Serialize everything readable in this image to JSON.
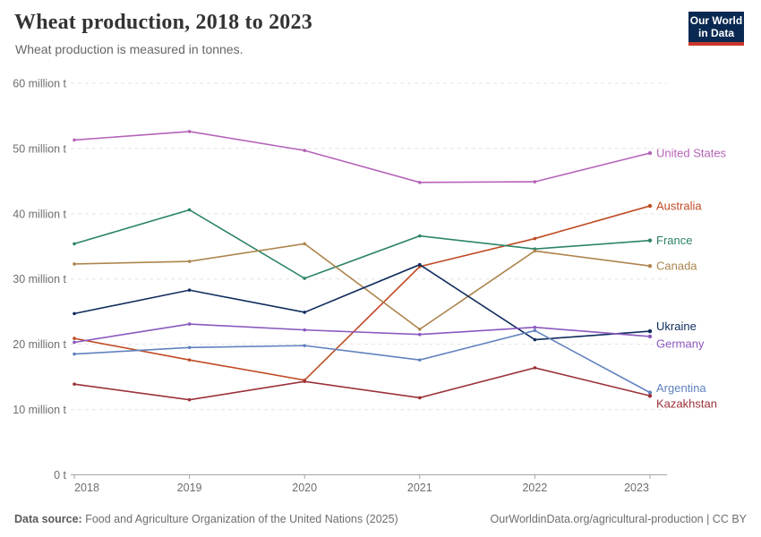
{
  "header": {
    "title": "Wheat production, 2018 to 2023",
    "subtitle": "Wheat production is measured in tonnes."
  },
  "logo": {
    "line1": "Our World",
    "line2": "in Data",
    "bg_color": "#0A2952",
    "accent_color": "#C9352C"
  },
  "footer": {
    "source_label": "Data source:",
    "source_text": " Food and Agriculture Organization of the United Nations (2025)",
    "credit": "OurWorldinData.org/agricultural-production | CC BY"
  },
  "chart_data": {
    "type": "line",
    "title": "Wheat production, 2018 to 2023",
    "subtitle": "Wheat production is measured in tonnes.",
    "unit": "tonnes",
    "values_unit": "million tonnes",
    "categories": [
      "2018",
      "2019",
      "2020",
      "2021",
      "2022",
      "2023"
    ],
    "xlabel": "",
    "ylabel": "",
    "ylim_million_t": [
      0,
      60
    ],
    "grid": "horizontal-dashed",
    "legend_position": "right-end-labels",
    "y_ticks": [
      {
        "value": 0,
        "label": "0 t"
      },
      {
        "value": 10,
        "label": "10 million t"
      },
      {
        "value": 20,
        "label": "20 million t"
      },
      {
        "value": 30,
        "label": "30 million t"
      },
      {
        "value": 40,
        "label": "40 million t"
      },
      {
        "value": 50,
        "label": "50 million t"
      },
      {
        "value": 60,
        "label": "60 million t"
      }
    ],
    "series": [
      {
        "name": "United States",
        "color": "#B563B8",
        "values": [
          51.3,
          52.6,
          49.7,
          44.8,
          44.9,
          49.3
        ]
      },
      {
        "name": "Australia",
        "color": "#C04B24",
        "values": [
          20.9,
          17.6,
          14.5,
          31.9,
          36.2,
          41.2
        ]
      },
      {
        "name": "France",
        "color": "#2C8465",
        "values": [
          35.4,
          40.6,
          30.1,
          36.6,
          34.6,
          35.9
        ]
      },
      {
        "name": "Canada",
        "color": "#AD854E",
        "values": [
          32.3,
          32.7,
          35.4,
          22.3,
          34.3,
          32.0
        ]
      },
      {
        "name": "Ukraine",
        "color": "#0E2B5C",
        "values": [
          24.7,
          28.3,
          24.9,
          32.2,
          20.7,
          22.0
        ]
      },
      {
        "name": "Germany",
        "color": "#8A58BE",
        "values": [
          20.3,
          23.1,
          22.2,
          21.5,
          22.6,
          21.2
        ]
      },
      {
        "name": "Argentina",
        "color": "#6182BE",
        "values": [
          18.5,
          19.5,
          19.8,
          17.6,
          22.1,
          12.6
        ]
      },
      {
        "name": "Kazakhstan",
        "color": "#9B3139",
        "values": [
          13.9,
          11.5,
          14.3,
          11.8,
          16.4,
          12.1
        ]
      }
    ]
  }
}
